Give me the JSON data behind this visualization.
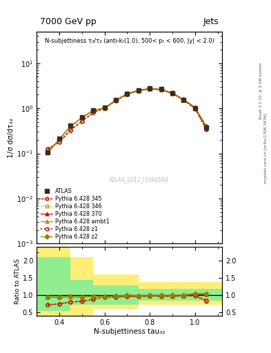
{
  "title_left": "7000 GeV pp",
  "title_right": "Jets",
  "annotation": "N-subjettiness τ₃/τ₂ (anti-kₜ(1.0), 500< pₜ < 600, |y| < 2.0)",
  "watermark": "ATLAS_2012_I1094564",
  "ylabel_main": "1/σ dσ/dτ₃₂",
  "ylabel_ratio": "Ratio to ATLAS",
  "xlabel": "N-subjettiness tau₃₂",
  "right_label1": "Rivet 3.1.10, ≥ 3.2M events",
  "right_label2": "mcplots.cern.ch [arXiv:1306.3436]",
  "x": [
    0.35,
    0.4,
    0.45,
    0.5,
    0.55,
    0.6,
    0.65,
    0.7,
    0.75,
    0.8,
    0.85,
    0.9,
    0.95,
    1.0,
    1.05
  ],
  "atlas_y": [
    0.105,
    0.215,
    0.415,
    0.64,
    0.92,
    1.05,
    1.55,
    2.1,
    2.55,
    2.75,
    2.65,
    2.2,
    1.55,
    1.0,
    0.38
  ],
  "atlas_yerr": [
    0.008,
    0.015,
    0.025,
    0.035,
    0.045,
    0.055,
    0.065,
    0.075,
    0.085,
    0.09,
    0.085,
    0.075,
    0.065,
    0.055,
    0.035
  ],
  "py345_y": [
    0.125,
    0.18,
    0.33,
    0.52,
    0.8,
    1.0,
    1.48,
    2.05,
    2.45,
    2.7,
    2.58,
    2.13,
    1.52,
    0.98,
    0.335
  ],
  "py346_y": [
    0.125,
    0.18,
    0.33,
    0.52,
    0.8,
    1.0,
    1.48,
    2.05,
    2.45,
    2.7,
    2.58,
    2.13,
    1.52,
    1.0,
    0.35
  ],
  "py370_y": [
    0.105,
    0.205,
    0.4,
    0.62,
    0.9,
    1.02,
    1.52,
    2.1,
    2.52,
    2.72,
    2.62,
    2.17,
    1.54,
    1.02,
    0.39
  ],
  "py_ambt1_y": [
    0.105,
    0.205,
    0.4,
    0.62,
    0.9,
    1.02,
    1.52,
    2.1,
    2.52,
    2.75,
    2.65,
    2.2,
    1.57,
    1.05,
    0.4
  ],
  "py_z1_y": [
    0.125,
    0.18,
    0.33,
    0.52,
    0.8,
    1.0,
    1.48,
    2.05,
    2.45,
    2.72,
    2.6,
    2.15,
    1.53,
    1.0,
    0.35
  ],
  "py_z2_y": [
    0.105,
    0.205,
    0.4,
    0.62,
    0.9,
    1.02,
    1.52,
    2.1,
    2.52,
    2.75,
    2.65,
    2.2,
    1.57,
    1.05,
    0.4
  ],
  "ratio_345": [
    0.72,
    0.75,
    0.8,
    0.83,
    0.88,
    0.95,
    0.95,
    0.97,
    0.96,
    0.98,
    0.97,
    0.97,
    0.98,
    0.98,
    0.83
  ],
  "ratio_346": [
    0.72,
    0.75,
    0.8,
    0.83,
    0.88,
    0.95,
    0.95,
    0.97,
    0.96,
    0.98,
    0.97,
    0.97,
    0.98,
    1.0,
    0.85
  ],
  "ratio_370": [
    0.95,
    0.95,
    0.96,
    0.95,
    0.97,
    0.97,
    0.98,
    1.0,
    0.99,
    0.99,
    0.99,
    0.99,
    0.99,
    1.02,
    1.02
  ],
  "ratio_ambt1": [
    0.95,
    0.95,
    0.96,
    0.95,
    0.97,
    0.97,
    0.98,
    1.0,
    0.99,
    1.0,
    1.0,
    1.0,
    1.01,
    1.05,
    1.05
  ],
  "ratio_z1": [
    0.72,
    0.75,
    0.8,
    0.83,
    0.88,
    0.95,
    0.95,
    0.97,
    0.96,
    0.99,
    0.98,
    0.98,
    0.99,
    1.0,
    0.85
  ],
  "ratio_z2": [
    0.95,
    0.95,
    0.96,
    0.95,
    0.97,
    0.97,
    0.98,
    1.0,
    0.99,
    1.0,
    1.0,
    1.0,
    1.01,
    1.05,
    1.05
  ],
  "band_edges": [
    0.3,
    0.45,
    0.55,
    0.75,
    0.95,
    1.12
  ],
  "band_yellow_lo": [
    0.35,
    0.35,
    0.6,
    0.72,
    0.72,
    0.72
  ],
  "band_yellow_hi": [
    2.5,
    2.1,
    1.6,
    1.38,
    1.38,
    1.38
  ],
  "band_green_lo": [
    0.55,
    0.72,
    0.72,
    0.84,
    0.84,
    0.84
  ],
  "band_green_hi": [
    2.1,
    1.45,
    1.28,
    1.18,
    1.18,
    1.18
  ],
  "color_atlas": "#3d2b1f",
  "color_345": "#cc1100",
  "color_346": "#cc8800",
  "color_370": "#cc1100",
  "color_ambt1": "#cc8800",
  "color_z1": "#cc1100",
  "color_z2": "#888800",
  "color_green": "#90ee90",
  "color_yellow": "#ffee77",
  "xlim": [
    0.3,
    1.12
  ],
  "ylim_main": [
    0.001,
    50
  ],
  "ylim_ratio": [
    0.4,
    2.4
  ]
}
